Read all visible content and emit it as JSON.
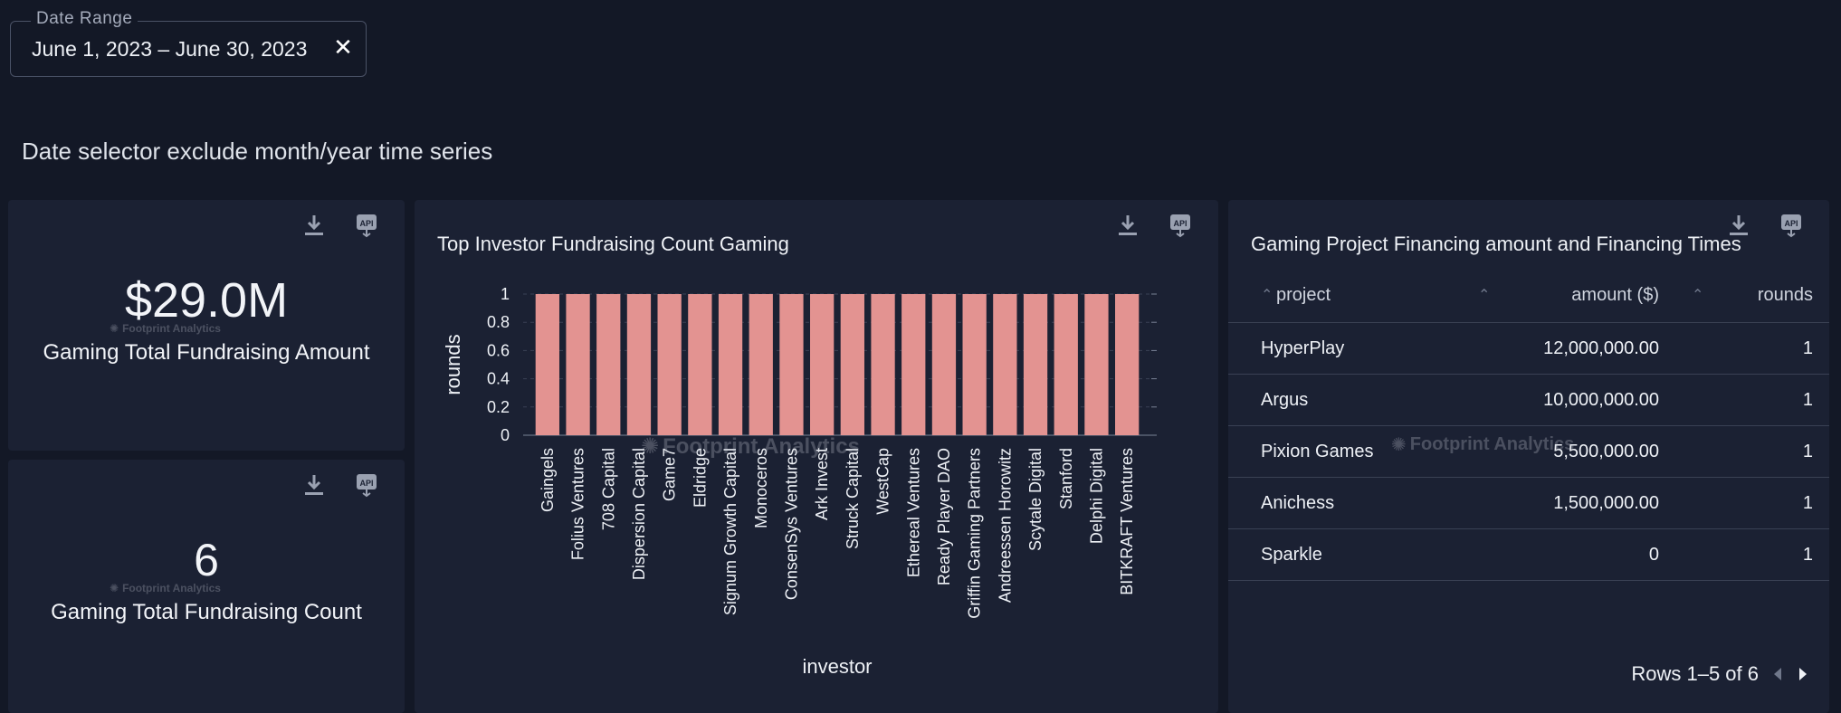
{
  "filter": {
    "label": "Date Range",
    "value": "June 1, 2023 – June 30, 2023",
    "clear_icon": "close-icon"
  },
  "section_text": "Date selector exclude month/year time series",
  "watermark": "Footprint Analytics",
  "kpis": [
    {
      "value": "$29.0M",
      "label": "Gaming Total Fundraising Amount"
    },
    {
      "value": "6",
      "label": "Gaming Total Fundraising Count"
    }
  ],
  "card_actions": {
    "download_icon": "download-icon",
    "api_icon": "api-icon",
    "api_text": "API"
  },
  "chart_card": {
    "title": "Top Investor Fundraising Count Gaming"
  },
  "chart_data": {
    "type": "bar",
    "title": "Top Investor Fundraising Count Gaming",
    "xlabel": "investor",
    "ylabel": "rounds",
    "categories": [
      "Gaingels",
      "Folius Ventures",
      "708 Capital",
      "Dispersion Capital",
      "Game7",
      "Eldridge",
      "Signum Growth Capital",
      "Monoceros",
      "ConsenSys Ventures",
      "Ark Invest",
      "Struck Capital",
      "WestCap",
      "Ethereal Ventures",
      "Ready Player DAO",
      "Griffin Gaming Partners",
      "Andreessen Horowitz",
      "Scytale Digital",
      "Stanford",
      "Delphi Digital",
      "BITKRAFT Ventures"
    ],
    "values": [
      1,
      1,
      1,
      1,
      1,
      1,
      1,
      1,
      1,
      1,
      1,
      1,
      1,
      1,
      1,
      1,
      1,
      1,
      1,
      1
    ],
    "ylim": [
      0,
      1
    ],
    "yticks": [
      "0",
      "0.2",
      "0.4",
      "0.6",
      "0.8",
      "1"
    ],
    "bar_color": "#e39391",
    "grid": true
  },
  "table_card": {
    "title": "Gaming Project Financing amount and Financing Times",
    "columns": [
      "project",
      "amount ($)",
      "rounds"
    ],
    "rows": [
      {
        "project": "HyperPlay",
        "amount": "12,000,000.00",
        "rounds": "1"
      },
      {
        "project": "Argus",
        "amount": "10,000,000.00",
        "rounds": "1"
      },
      {
        "project": "Pixion Games",
        "amount": "5,500,000.00",
        "rounds": "1"
      },
      {
        "project": "Anichess",
        "amount": "1,500,000.00",
        "rounds": "1"
      },
      {
        "project": "Sparkle",
        "amount": "0",
        "rounds": "1"
      }
    ],
    "pagination": "Rows 1–5 of 6"
  },
  "colors": {
    "background": "#131826",
    "card": "#1b2133",
    "bar": "#e39391",
    "divider": "#3a4154"
  }
}
